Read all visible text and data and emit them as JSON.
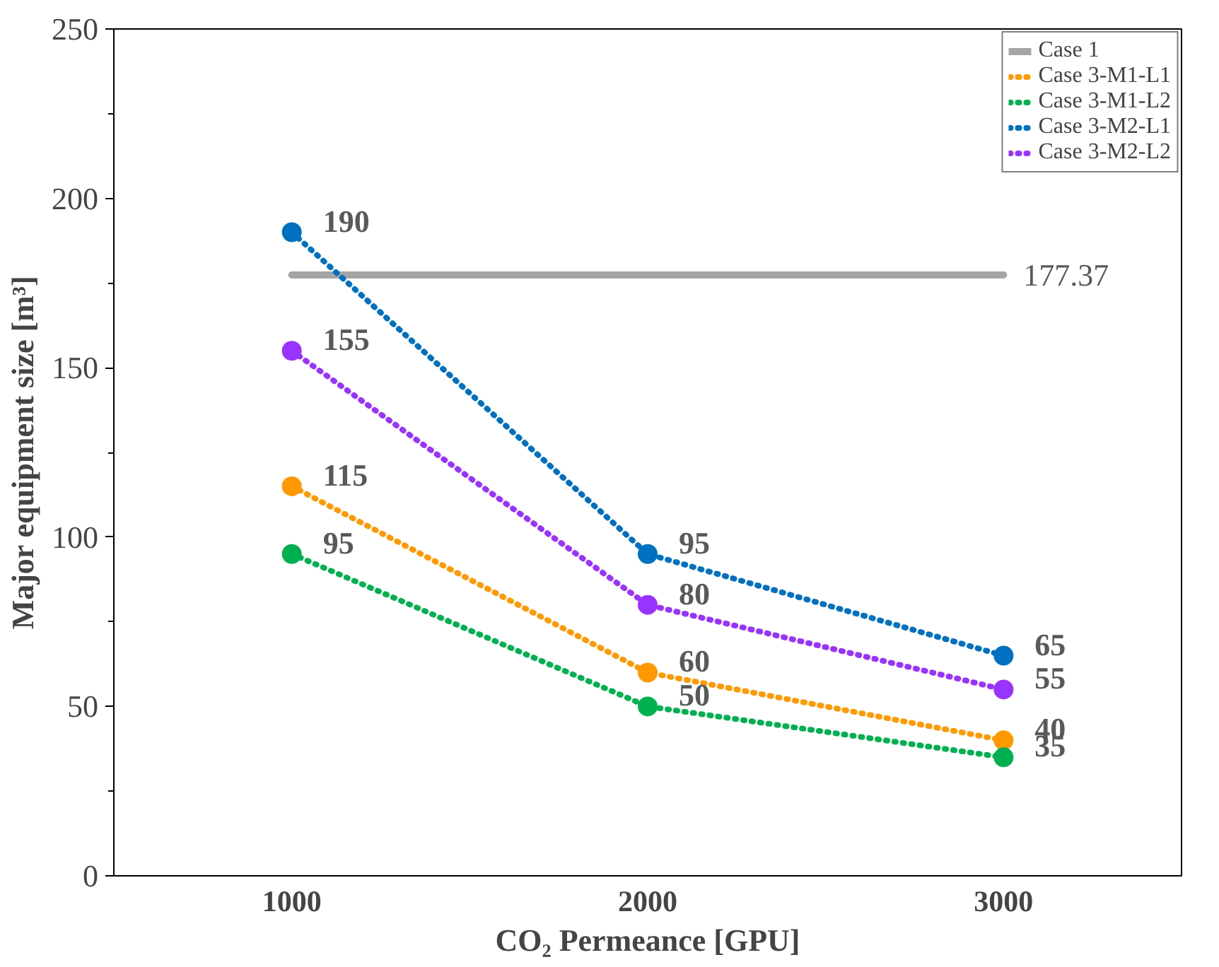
{
  "chart_data": {
    "type": "line",
    "xlabel": "CO₂ Permeance [GPU]",
    "ylabel": "Major equipment size [m³]",
    "categories": [
      "1000",
      "2000",
      "3000"
    ],
    "ylim": [
      0,
      250
    ],
    "yticks": [
      0,
      {
        "value": 25,
        "label": null
      },
      50,
      {
        "value": 75,
        "label": null
      },
      100,
      {
        "value": 125,
        "label": null
      },
      150,
      {
        "value": 175,
        "label": null
      },
      200,
      {
        "value": 225,
        "label": null
      },
      250
    ],
    "grid": false,
    "legend": "top right",
    "series": [
      {
        "name": "Case 1",
        "color": "#a5a5a5",
        "values": [
          177.37,
          177.37,
          177.37
        ],
        "line_style": "solid",
        "marker": "none",
        "value_labels": [
          null,
          null,
          "177.37"
        ]
      },
      {
        "name": "Case 3-M1-L1",
        "color": "#ff9900",
        "values": [
          115,
          60,
          40
        ],
        "line_style": "dotted",
        "marker": "circle",
        "value_labels": [
          "115",
          "60",
          "40"
        ]
      },
      {
        "name": "Case 3-M1-L2",
        "color": "#00b050",
        "values": [
          95,
          50,
          35
        ],
        "line_style": "dotted",
        "marker": "circle",
        "value_labels": [
          "95",
          "50",
          "35"
        ]
      },
      {
        "name": "Case 3-M2-L1",
        "color": "#0070c0",
        "values": [
          190,
          95,
          65
        ],
        "line_style": "dotted",
        "marker": "circle",
        "value_labels": [
          "190",
          "95",
          "65"
        ]
      },
      {
        "name": "Case 3-M2-L2",
        "color": "#9933ff",
        "values": [
          155,
          80,
          55
        ],
        "line_style": "dotted",
        "marker": "circle",
        "value_labels": [
          "155",
          "80",
          "55"
        ]
      }
    ]
  }
}
